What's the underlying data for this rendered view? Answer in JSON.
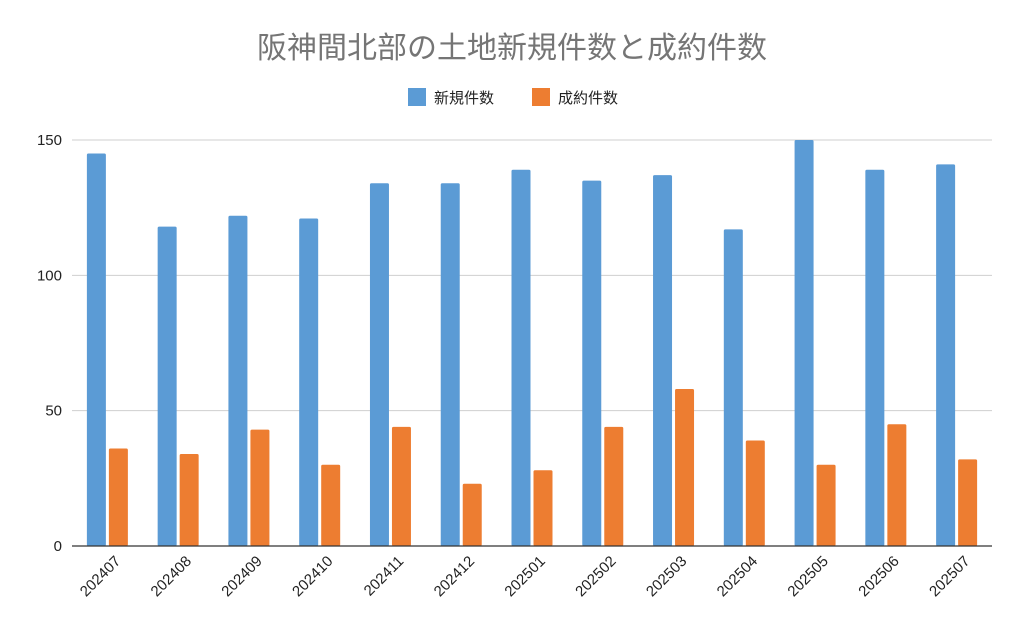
{
  "chart_data": {
    "type": "bar",
    "title": "阪神間北部の土地新規件数と成約件数",
    "categories": [
      "202407",
      "202408",
      "202409",
      "202410",
      "202411",
      "202412",
      "202501",
      "202502",
      "202503",
      "202504",
      "202505",
      "202506",
      "202507"
    ],
    "series": [
      {
        "name": "新規件数",
        "color": "#5b9bd5",
        "values": [
          145,
          118,
          122,
          121,
          134,
          134,
          139,
          135,
          137,
          117,
          150,
          139,
          141
        ]
      },
      {
        "name": "成約件数",
        "color": "#ed7d31",
        "values": [
          36,
          34,
          43,
          30,
          44,
          23,
          28,
          44,
          58,
          39,
          30,
          45,
          32
        ]
      }
    ],
    "ylim": [
      0,
      150
    ],
    "yticks": [
      0,
      50,
      100,
      150
    ],
    "grid": true,
    "legend_position": "top-center"
  }
}
